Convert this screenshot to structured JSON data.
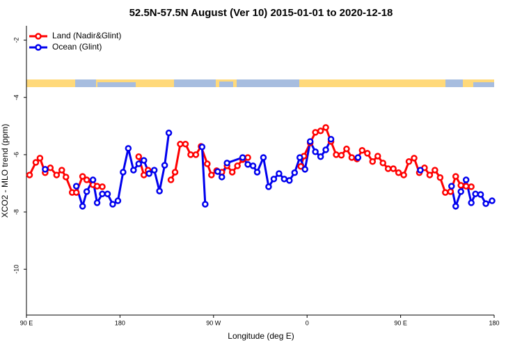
{
  "chart_data": {
    "type": "line",
    "title": "52.5N-57.5N August (Ver 10)   2015-01-01 to 2020-12-18",
    "x_label": "Longitude (deg E)",
    "y_label": "XCO2 - MLO trend (ppm)",
    "xlim": [
      90,
      540
    ],
    "ylim": [
      -11.6,
      -1.5
    ],
    "xticks": [
      {
        "value": 90,
        "label": "90 E"
      },
      {
        "value": 180,
        "label": "180"
      },
      {
        "value": 270,
        "label": "90 W"
      },
      {
        "value": 360,
        "label": "0"
      },
      {
        "value": 450,
        "label": "90 E"
      },
      {
        "value": 540,
        "label": "180"
      }
    ],
    "yticks": [
      -10,
      -8,
      -6,
      -4,
      -2
    ],
    "legend_position": "top-left",
    "series": [
      {
        "name": "Land (Nadir&Glint)",
        "color": "#ff0000",
        "x": [
          93,
          99,
          103,
          108,
          113,
          119,
          124,
          128,
          134,
          138,
          144,
          148,
          154,
          158,
          163,
          null,
          198,
          203,
          207,
          null,
          229,
          233,
          238,
          243,
          248,
          253,
          258,
          264,
          268,
          273,
          278,
          283,
          288,
          293,
          298,
          303,
          null,
          354,
          357,
          363,
          368,
          373,
          378,
          383,
          388,
          393,
          398,
          403,
          408,
          413,
          418,
          423,
          428,
          433,
          438,
          443,
          448,
          453,
          458,
          463,
          468,
          473,
          478,
          483,
          488,
          493,
          498,
          503,
          508,
          513,
          518
        ],
        "values": [
          -6.71,
          -6.27,
          -6.12,
          -6.63,
          -6.46,
          -6.71,
          -6.54,
          -6.78,
          -7.32,
          -7.32,
          -6.76,
          -6.88,
          -7.05,
          -7.1,
          -7.12,
          null,
          -6.07,
          -6.71,
          -6.54,
          null,
          -6.88,
          -6.61,
          -5.63,
          -5.63,
          -6.0,
          -6.0,
          -5.71,
          -6.32,
          -6.71,
          -6.56,
          -6.61,
          -6.39,
          -6.61,
          -6.39,
          -6.17,
          -6.1,
          null,
          -6.41,
          -6.05,
          -5.59,
          -5.22,
          -5.17,
          -5.05,
          -5.54,
          -6.0,
          -6.02,
          -5.8,
          -6.1,
          -6.15,
          -5.85,
          -5.95,
          -6.24,
          -6.05,
          -6.29,
          -6.49,
          -6.49,
          -6.63,
          -6.71,
          -6.24,
          -6.12,
          -6.63,
          -6.46,
          -6.71,
          -6.54,
          -6.8,
          -7.32,
          -7.29,
          -6.76,
          -7.07,
          -7.1,
          -7.12
        ]
      },
      {
        "name": "Ocean (Glint)",
        "color": "#0000ee",
        "x": [
          108,
          null,
          138,
          144,
          148,
          154,
          158,
          163,
          168,
          173,
          178,
          183,
          188,
          193,
          198,
          203,
          208,
          213,
          218,
          223,
          227,
          null,
          259,
          262,
          null,
          274,
          278,
          283,
          298,
          303,
          308,
          312,
          318,
          323,
          328,
          333,
          338,
          343,
          348,
          353,
          358,
          363,
          368,
          373,
          378,
          383,
          null,
          409,
          null,
          469,
          null,
          499,
          503,
          508,
          513,
          518,
          522,
          527,
          532,
          538
        ],
        "values": [
          -6.51,
          null,
          -7.1,
          -7.8,
          -7.29,
          -6.88,
          -7.68,
          -7.37,
          -7.37,
          -7.73,
          -7.61,
          -6.61,
          -5.78,
          -6.54,
          -6.32,
          -6.2,
          -6.66,
          -6.54,
          -7.27,
          -6.37,
          -5.24,
          null,
          -5.73,
          -7.73,
          null,
          -6.59,
          -6.78,
          -6.29,
          -6.1,
          -6.34,
          -6.39,
          -6.61,
          -6.1,
          -7.12,
          -6.85,
          -6.66,
          -6.85,
          -6.9,
          -6.63,
          -6.1,
          -6.51,
          -5.54,
          -5.9,
          -6.07,
          -5.83,
          -5.46,
          null,
          -6.1,
          null,
          -6.54,
          null,
          -7.1,
          -7.8,
          -7.29,
          -6.88,
          -7.68,
          -7.37,
          -7.39,
          -7.71,
          -7.61
        ]
      }
    ]
  }
}
